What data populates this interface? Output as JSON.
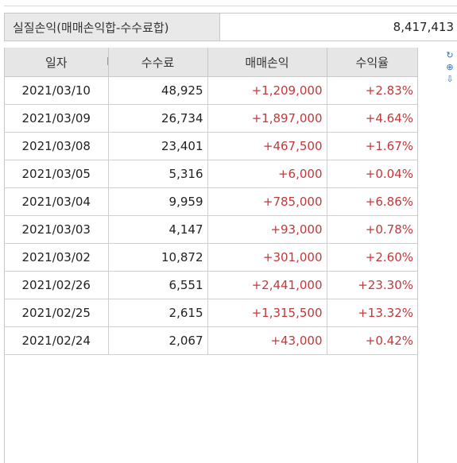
{
  "summary": {
    "label": "실질손익(매매손익합-수수료합)",
    "value": "8,417,413"
  },
  "columns": [
    "일자",
    "수수료",
    "매매손익",
    "수익율"
  ],
  "rows": [
    {
      "date": "2021/03/10",
      "fee": "48,925",
      "pnl": "+1,209,000",
      "rate": "+2.83%"
    },
    {
      "date": "2021/03/09",
      "fee": "26,734",
      "pnl": "+1,897,000",
      "rate": "+4.64%"
    },
    {
      "date": "2021/03/08",
      "fee": "23,401",
      "pnl": "+467,500",
      "rate": "+1.67%"
    },
    {
      "date": "2021/03/05",
      "fee": "5,316",
      "pnl": "+6,000",
      "rate": "+0.04%"
    },
    {
      "date": "2021/03/04",
      "fee": "9,959",
      "pnl": "+785,000",
      "rate": "+6.86%"
    },
    {
      "date": "2021/03/03",
      "fee": "4,147",
      "pnl": "+93,000",
      "rate": "+0.78%"
    },
    {
      "date": "2021/03/02",
      "fee": "10,872",
      "pnl": "+301,000",
      "rate": "+2.60%"
    },
    {
      "date": "2021/02/26",
      "fee": "6,551",
      "pnl": "+2,441,000",
      "rate": "+23.30%"
    },
    {
      "date": "2021/02/25",
      "fee": "2,615",
      "pnl": "+1,315,500",
      "rate": "+13.32%"
    },
    {
      "date": "2021/02/24",
      "fee": "2,067",
      "pnl": "+43,000",
      "rate": "+0.42%"
    }
  ],
  "icons": [
    "refresh-icon",
    "expand-icon",
    "download-icon"
  ],
  "colors": {
    "positive": "#c0393b",
    "header_bg": "#e6e6e6",
    "grid_line": "#cfcfcf"
  }
}
